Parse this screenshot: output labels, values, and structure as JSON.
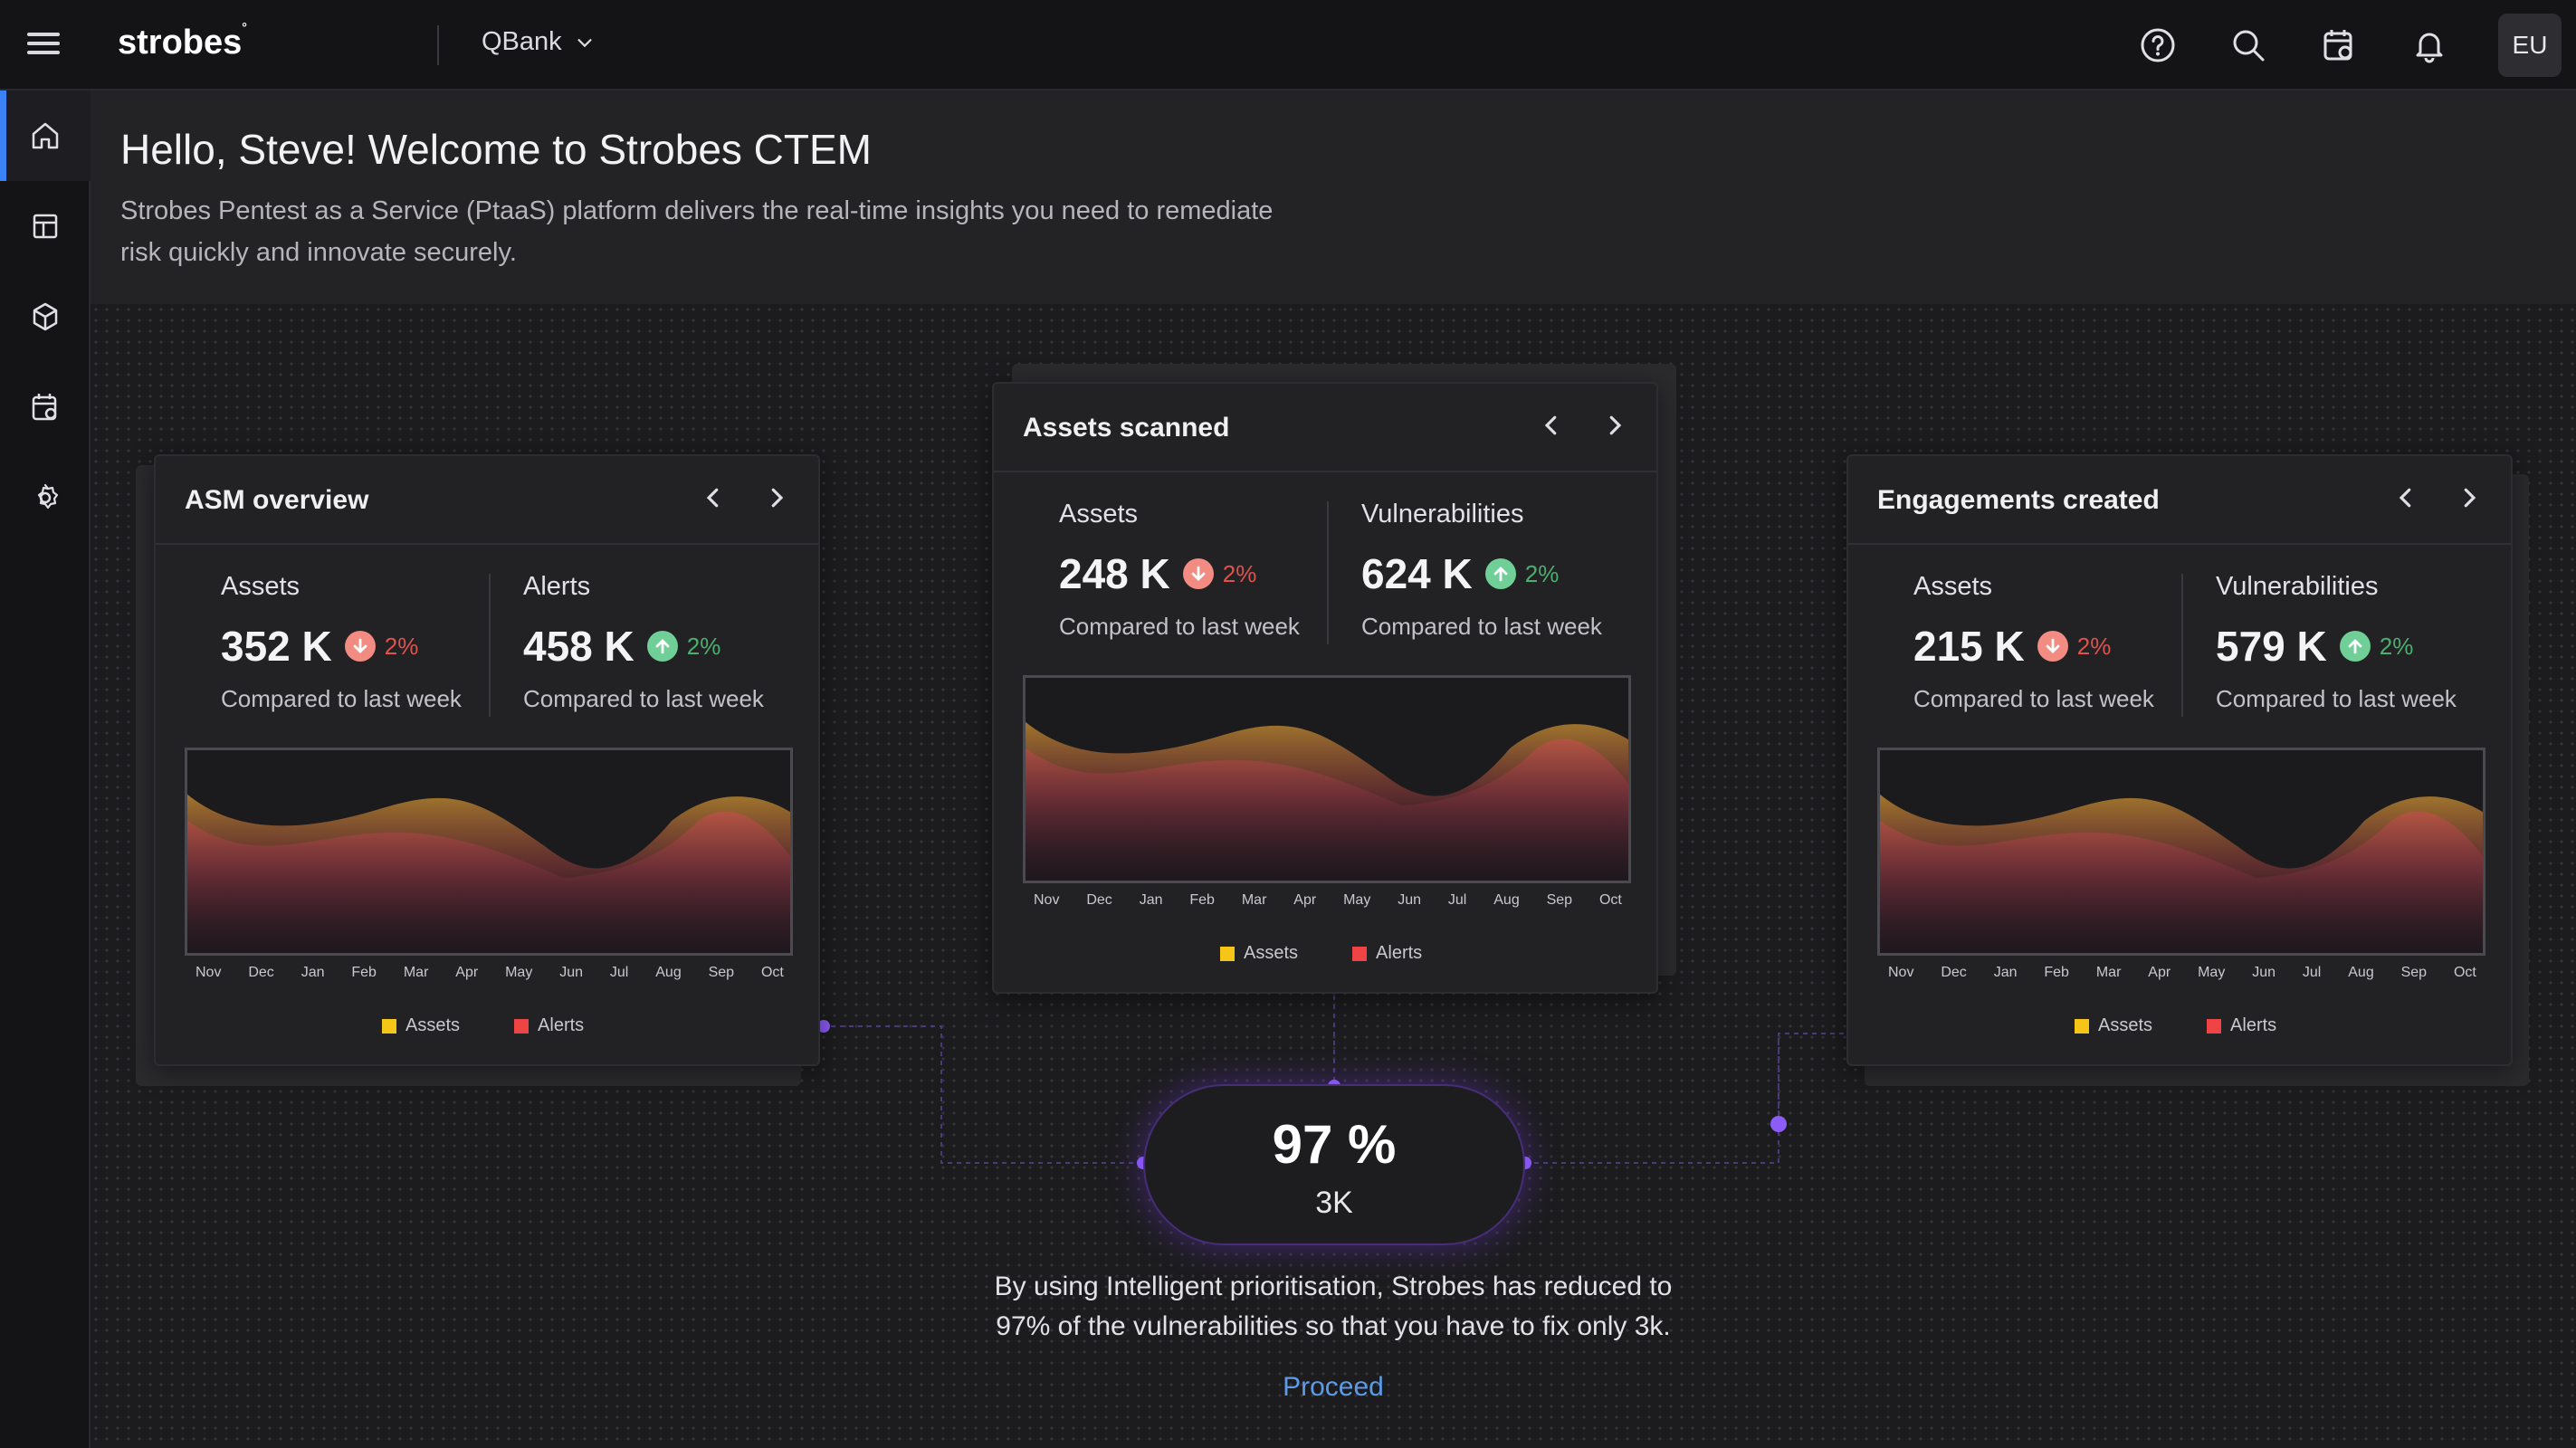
{
  "header": {
    "logo": "strobes",
    "logo_mark": "°",
    "workspace": "QBank",
    "avatar_initials": "EU",
    "icons": [
      "help-icon",
      "search-icon",
      "calendar-settings-icon",
      "bell-icon"
    ]
  },
  "sidebar": {
    "items": [
      "home-icon",
      "dashboard-icon",
      "assets-cube-icon",
      "calendar-settings-icon",
      "gear-icon"
    ],
    "active": "home-icon"
  },
  "welcome": {
    "title": "Hello, Steve! Welcome to Strobes CTEM",
    "description": "Strobes Pentest as a Service (PtaaS) platform delivers the real-time insights you need to remediate risk quickly and innovate securely."
  },
  "colors": {
    "accent": "#3b82f6",
    "down": "#e0524d",
    "up": "#4caf6e",
    "assets_legend": "#f5c518",
    "alerts_legend": "#ef4444",
    "connector": "#7c3aed",
    "link": "#5b9be8"
  },
  "cards": {
    "asm": {
      "title": "ASM overview",
      "stat1": {
        "label": "Assets",
        "value": "352 K",
        "pct": "2%",
        "trend": "down",
        "sub": "Compared to last week"
      },
      "stat2": {
        "label": "Alerts",
        "value": "458 K",
        "pct": "2%",
        "trend": "up",
        "sub": "Compared to last week"
      },
      "months": [
        "Nov",
        "Dec",
        "Jan",
        "Feb",
        "Mar",
        "Apr",
        "May",
        "Jun",
        "Jul",
        "Aug",
        "Sep",
        "Oct"
      ],
      "legend": [
        "Assets",
        "Alerts"
      ]
    },
    "scanned": {
      "title": "Assets scanned",
      "stat1": {
        "label": "Assets",
        "value": "248 K",
        "pct": "2%",
        "trend": "down",
        "sub": "Compared to last week"
      },
      "stat2": {
        "label": "Vulnerabilities",
        "value": "624 K",
        "pct": "2%",
        "trend": "up",
        "sub": "Compared to last week"
      },
      "months": [
        "Nov",
        "Dec",
        "Jan",
        "Feb",
        "Mar",
        "Apr",
        "May",
        "Jun",
        "Jul",
        "Aug",
        "Sep",
        "Oct"
      ],
      "legend": [
        "Assets",
        "Alerts"
      ]
    },
    "engagements": {
      "title": "Engagements created",
      "stat1": {
        "label": "Assets",
        "value": "215 K",
        "pct": "2%",
        "trend": "down",
        "sub": "Compared to last week"
      },
      "stat2": {
        "label": "Vulnerabilities",
        "value": "579 K",
        "pct": "2%",
        "trend": "up",
        "sub": "Compared to last week"
      },
      "months": [
        "Nov",
        "Dec",
        "Jan",
        "Feb",
        "Mar",
        "Apr",
        "May",
        "Jun",
        "Jul",
        "Aug",
        "Sep",
        "Oct"
      ],
      "legend": [
        "Assets",
        "Alerts"
      ]
    }
  },
  "summary": {
    "percent": "97 %",
    "count": "3K",
    "message": "By using Intelligent prioritisation, Strobes has reduced to 97% of the vulnerabilities so that you have to fix only 3k.",
    "cta": "Proceed"
  }
}
